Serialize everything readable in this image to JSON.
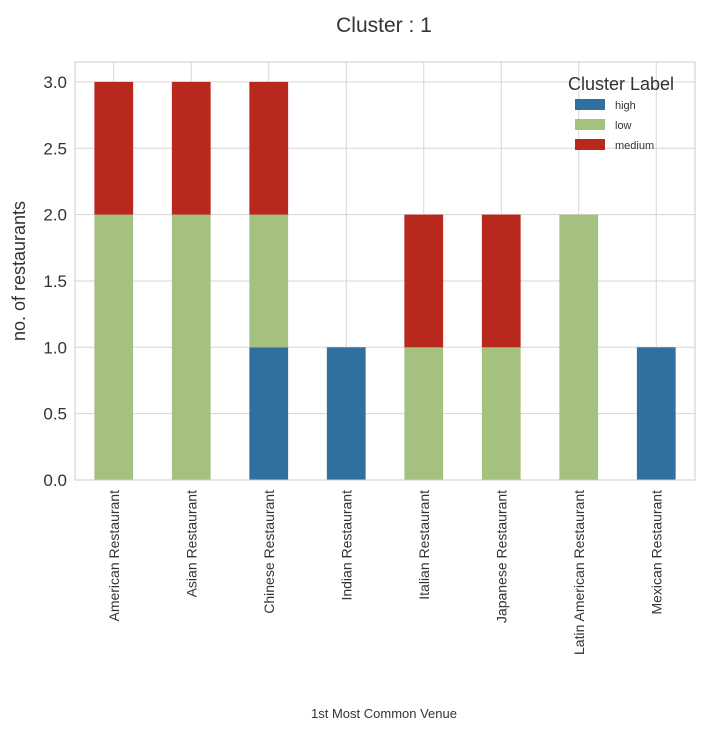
{
  "chart_data": {
    "type": "bar",
    "stacked": true,
    "title": "Cluster : 1",
    "xlabel": "1st Most Common Venue",
    "ylabel": "no. of restaurants",
    "ylim": [
      0,
      3.15
    ],
    "yticks": [
      0.0,
      0.5,
      1.0,
      1.5,
      2.0,
      2.5,
      3.0
    ],
    "grid": true,
    "legend": {
      "title": "Cluster Label",
      "placement": "top-right"
    },
    "categories": [
      "American Restaurant",
      "Asian Restaurant",
      "Chinese Restaurant",
      "Indian Restaurant",
      "Italian Restaurant",
      "Japanese Restaurant",
      "Latin American Restaurant",
      "Mexican Restaurant"
    ],
    "series": [
      {
        "name": "high",
        "color": "#3070a0",
        "values": [
          0,
          0,
          1,
          1,
          0,
          0,
          0,
          1
        ]
      },
      {
        "name": "low",
        "color": "#a5c180",
        "values": [
          2,
          2,
          1,
          0,
          1,
          1,
          2,
          0
        ]
      },
      {
        "name": "medium",
        "color": "#b8281c",
        "values": [
          1,
          1,
          1,
          0,
          1,
          1,
          0,
          0
        ]
      }
    ]
  }
}
